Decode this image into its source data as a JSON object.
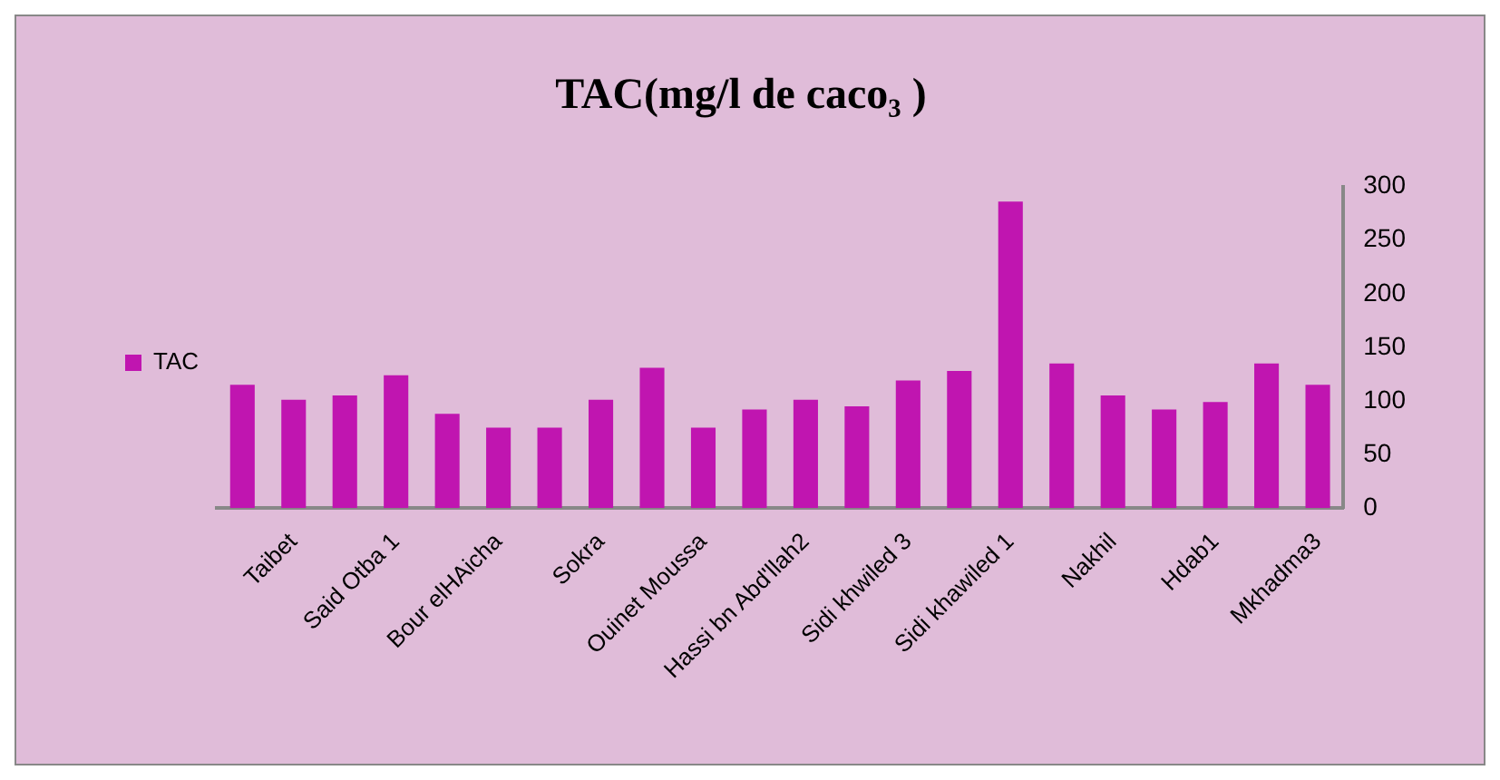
{
  "chart_data": {
    "type": "bar",
    "title": "TAC(mg/l de caco₃ )",
    "categories": [
      null,
      "Taibet",
      null,
      "Said Otba 1",
      null,
      "Bour elHAicha",
      null,
      "Sokra",
      null,
      "Ouinet Moussa",
      null,
      "Hassi bn Abd'llah2",
      null,
      "Sidi khwiled 3",
      null,
      "Sidi khawiled 1",
      null,
      "Nakhil",
      null,
      "Hdab1",
      null,
      "Mkhadma3"
    ],
    "series": [
      {
        "name": "TAC",
        "color": "#c015b0",
        "values": [
          115,
          101,
          105,
          124,
          88,
          75,
          75,
          101,
          131,
          75,
          92,
          101,
          95,
          119,
          128,
          286,
          135,
          105,
          92,
          99,
          135,
          115
        ]
      }
    ],
    "ylim": [
      0,
      300
    ],
    "yticks": [
      0,
      50,
      100,
      150,
      200,
      250,
      300
    ],
    "grid": false,
    "legend": "left"
  }
}
